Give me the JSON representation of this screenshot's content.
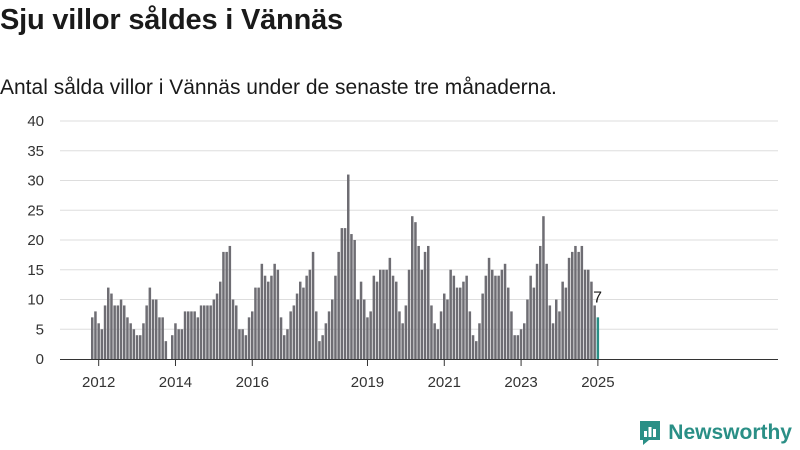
{
  "title": "Sju villor såldes i Vännäs",
  "subtitle": "Antal sålda villor i Vännäs under de senaste tre månaderna.",
  "brand": {
    "name": "Newsworthy",
    "logo_icon": "bar-chart-logo-icon",
    "color": "#2a8f86"
  },
  "chart_data": {
    "type": "bar",
    "title": "",
    "xlabel": "",
    "ylabel": "",
    "ylim": [
      0,
      40
    ],
    "yticks": [
      0,
      5,
      10,
      15,
      20,
      25,
      30,
      35,
      40
    ],
    "xticks": [
      "2012",
      "2014",
      "2016",
      "2019",
      "2021",
      "2023",
      "2025"
    ],
    "xtick_positions": [
      2012.2,
      2014.2,
      2016.2,
      2019.2,
      2021.2,
      2023.2,
      2025.2
    ],
    "grid": true,
    "colors": {
      "bar": "#6e6d73",
      "highlight": "#2a8f86",
      "grid": "#dddddd",
      "axis": "#333333"
    },
    "highlight_label": "7",
    "start_month": "2012-01",
    "values": [
      7,
      8,
      6,
      5,
      9,
      12,
      11,
      9,
      9,
      10,
      9,
      7,
      6,
      5,
      4,
      4,
      6,
      9,
      12,
      10,
      10,
      7,
      7,
      3,
      0,
      4,
      6,
      5,
      5,
      8,
      8,
      8,
      8,
      7,
      9,
      9,
      9,
      9,
      10,
      11,
      13,
      18,
      18,
      19,
      10,
      9,
      5,
      5,
      4,
      7,
      8,
      12,
      12,
      16,
      14,
      13,
      14,
      16,
      15,
      7,
      4,
      5,
      8,
      9,
      11,
      13,
      12,
      14,
      15,
      18,
      8,
      3,
      4,
      6,
      8,
      10,
      14,
      18,
      22,
      22,
      31,
      21,
      20,
      10,
      13,
      10,
      7,
      8,
      14,
      13,
      15,
      15,
      15,
      17,
      14,
      13,
      8,
      6,
      9,
      15,
      24,
      23,
      19,
      15,
      18,
      19,
      9,
      6,
      5,
      8,
      11,
      10,
      15,
      14,
      12,
      12,
      13,
      14,
      8,
      4,
      3,
      6,
      11,
      14,
      17,
      15,
      14,
      14,
      15,
      16,
      12,
      8,
      4,
      4,
      5,
      6,
      10,
      14,
      12,
      16,
      19,
      24,
      16,
      9,
      6,
      10,
      8,
      13,
      12,
      17,
      18,
      19,
      18,
      19,
      15,
      15,
      13,
      9,
      7
    ]
  }
}
